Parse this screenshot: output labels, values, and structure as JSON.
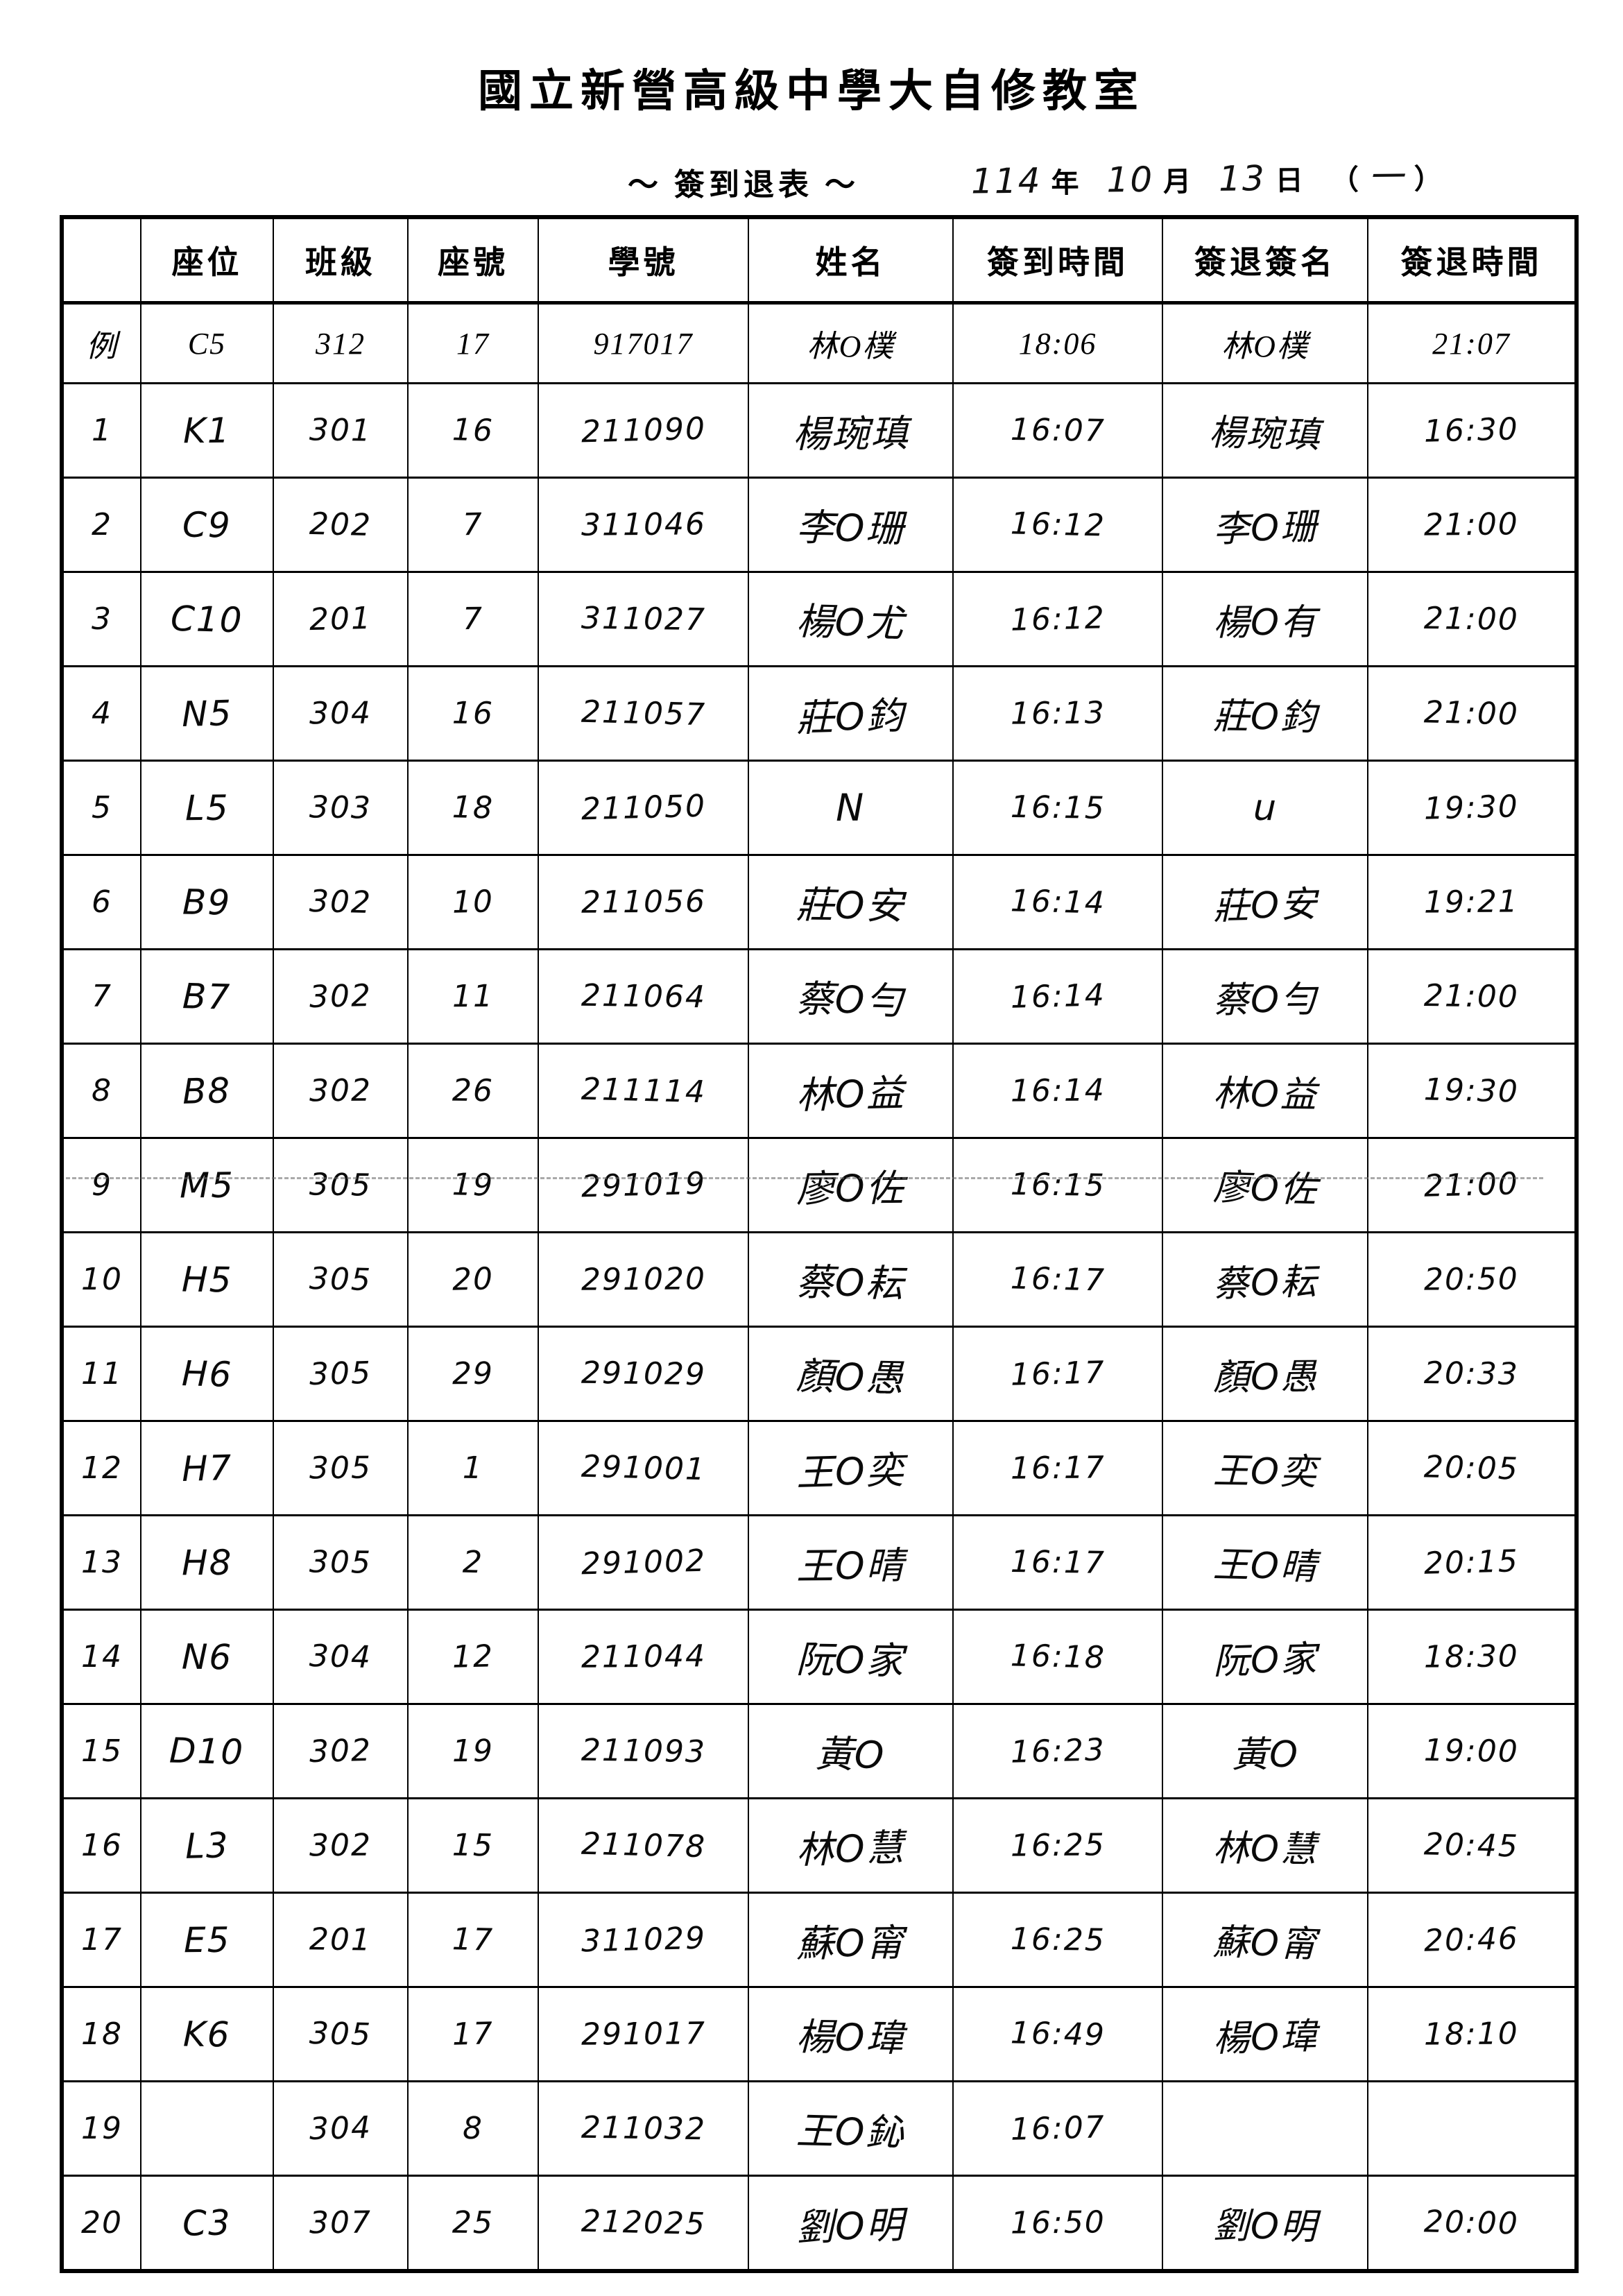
{
  "page": {
    "title": "國立新營高級中學大自修教室",
    "subtitle": "～ 簽到退表 ～",
    "date": {
      "year_value": "114",
      "year_label": "年",
      "month_value": "10",
      "month_label": "月",
      "day_value": "13",
      "day_label": "日",
      "weekday_open": "（",
      "weekday_value": "一",
      "weekday_close": "）"
    }
  },
  "table": {
    "headers": [
      "",
      "座位",
      "班級",
      "座號",
      "學號",
      "姓名",
      "簽到時間",
      "簽退簽名",
      "簽退時間"
    ],
    "example_rows": [
      {
        "kind": "example",
        "cells": [
          "例",
          "C5",
          "312",
          "17",
          "917017",
          "林O樸",
          "18:06",
          "林O樸",
          "21:07"
        ]
      }
    ],
    "rows": [
      {
        "kind": "entry",
        "cells": [
          "1",
          "K1",
          "301",
          "16",
          "211090",
          "楊琬瑱",
          "16:07",
          "楊琬瑱",
          "16:30"
        ]
      },
      {
        "kind": "entry",
        "cells": [
          "2",
          "C9",
          "202",
          "7",
          "311046",
          "李O珊",
          "16:12",
          "李O珊",
          "21:00"
        ]
      },
      {
        "kind": "entry",
        "cells": [
          "3",
          "C10",
          "201",
          "7",
          "311027",
          "楊O尤",
          "16:12",
          "楊O有",
          "21:00"
        ]
      },
      {
        "kind": "entry",
        "cells": [
          "4",
          "N5",
          "304",
          "16",
          "211057",
          "莊O鈞",
          "16:13",
          "莊O鈞",
          "21:00"
        ]
      },
      {
        "kind": "entry",
        "cells": [
          "5",
          "L5",
          "303",
          "18",
          "211050",
          "N",
          "16:15",
          "u",
          "19:30"
        ]
      },
      {
        "kind": "entry",
        "cells": [
          "6",
          "B9",
          "302",
          "10",
          "211056",
          "莊O安",
          "16:14",
          "莊O安",
          "19:21"
        ]
      },
      {
        "kind": "entry",
        "cells": [
          "7",
          "B7",
          "302",
          "11",
          "211064",
          "蔡O勻",
          "16:14",
          "蔡O勻",
          "21:00"
        ]
      },
      {
        "kind": "entry",
        "cells": [
          "8",
          "B8",
          "302",
          "26",
          "211114",
          "林O益",
          "16:14",
          "林O益",
          "19:30"
        ]
      },
      {
        "kind": "entry",
        "cells": [
          "9",
          "M5",
          "305",
          "19",
          "291019",
          "廖O佐",
          "16:15",
          "廖O佐",
          "21:00"
        ]
      },
      {
        "kind": "entry",
        "cells": [
          "10",
          "H5",
          "305",
          "20",
          "291020",
          "蔡O耘",
          "16:17",
          "蔡O耘",
          "20:50"
        ]
      },
      {
        "kind": "entry",
        "cells": [
          "11",
          "H6",
          "305",
          "29",
          "291029",
          "顏O愚",
          "16:17",
          "顏O愚",
          "20:33"
        ]
      },
      {
        "kind": "entry",
        "cells": [
          "12",
          "H7",
          "305",
          "1",
          "291001",
          "王O奕",
          "16:17",
          "王O奕",
          "20:05"
        ]
      },
      {
        "kind": "entry",
        "cells": [
          "13",
          "H8",
          "305",
          "2",
          "291002",
          "王O晴",
          "16:17",
          "王O晴",
          "20:15"
        ]
      },
      {
        "kind": "entry",
        "cells": [
          "14",
          "N6",
          "304",
          "12",
          "211044",
          "阮O家",
          "16:18",
          "阮O家",
          "18:30"
        ]
      },
      {
        "kind": "entry",
        "cells": [
          "15",
          "D10",
          "302",
          "19",
          "211093",
          "黃O",
          "16:23",
          "黃O",
          "19:00"
        ]
      },
      {
        "kind": "entry",
        "cells": [
          "16",
          "L3",
          "302",
          "15",
          "211078",
          "林O慧",
          "16:25",
          "林O慧",
          "20:45"
        ]
      },
      {
        "kind": "entry",
        "cells": [
          "17",
          "E5",
          "201",
          "17",
          "311029",
          "蘇O甯",
          "16:25",
          "蘇O甯",
          "20:46"
        ]
      },
      {
        "kind": "entry",
        "cells": [
          "18",
          "K6",
          "305",
          "17",
          "291017",
          "楊O瑋",
          "16:49",
          "楊O瑋",
          "18:10"
        ]
      },
      {
        "kind": "entry",
        "cells": [
          "19",
          "",
          "304",
          "8",
          "211032",
          "王O鈊",
          "16:07",
          "",
          ""
        ]
      },
      {
        "kind": "entry",
        "cells": [
          "20",
          "C3",
          "307",
          "25",
          "212025",
          "劉O明",
          "16:50",
          "劉O明",
          "20:00"
        ]
      }
    ]
  }
}
